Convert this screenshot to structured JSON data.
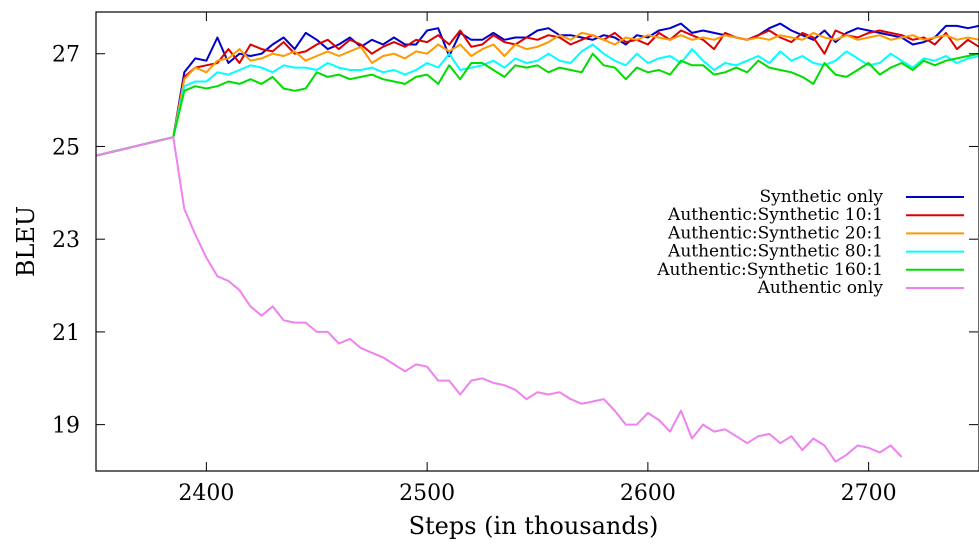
{
  "chart_data": {
    "type": "line",
    "title": "",
    "xlabel": "Steps (in thousands)",
    "ylabel": "BLEU",
    "xlim": [
      2350,
      2750
    ],
    "ylim": [
      18,
      27.9
    ],
    "xticks": [
      2400,
      2500,
      2600,
      2700
    ],
    "yticks": [
      19,
      21,
      23,
      25,
      27
    ],
    "grid": false,
    "legend_position": "right",
    "series": [
      {
        "name": "Synthetic only",
        "color": "#0000cc",
        "x": [
          2350,
          2385,
          2390,
          2395,
          2400,
          2405,
          2410,
          2415,
          2420,
          2425,
          2430,
          2435,
          2440,
          2445,
          2450,
          2455,
          2460,
          2465,
          2470,
          2475,
          2480,
          2485,
          2490,
          2495,
          2500,
          2505,
          2510,
          2515,
          2520,
          2525,
          2530,
          2535,
          2540,
          2545,
          2550,
          2555,
          2560,
          2565,
          2570,
          2575,
          2580,
          2585,
          2590,
          2595,
          2600,
          2605,
          2610,
          2615,
          2620,
          2625,
          2630,
          2635,
          2640,
          2645,
          2650,
          2655,
          2660,
          2665,
          2670,
          2675,
          2680,
          2685,
          2690,
          2695,
          2700,
          2705,
          2710,
          2715,
          2720,
          2725,
          2730,
          2735,
          2740,
          2745,
          2750
        ],
        "y": [
          24.8,
          25.2,
          26.6,
          26.9,
          26.85,
          27.35,
          26.8,
          27.0,
          26.95,
          27.0,
          27.2,
          27.35,
          27.1,
          27.45,
          27.3,
          27.1,
          27.2,
          27.35,
          27.15,
          27.3,
          27.2,
          27.35,
          27.2,
          27.2,
          27.5,
          27.55,
          26.95,
          27.45,
          27.3,
          27.3,
          27.45,
          27.3,
          27.35,
          27.35,
          27.5,
          27.55,
          27.4,
          27.4,
          27.35,
          27.3,
          27.4,
          27.35,
          27.2,
          27.4,
          27.35,
          27.5,
          27.55,
          27.65,
          27.45,
          27.5,
          27.45,
          27.4,
          27.35,
          27.3,
          27.4,
          27.55,
          27.65,
          27.5,
          27.4,
          27.3,
          27.5,
          27.25,
          27.45,
          27.55,
          27.5,
          27.45,
          27.4,
          27.35,
          27.2,
          27.25,
          27.35,
          27.6,
          27.6,
          27.55,
          27.6
        ]
      },
      {
        "name": "Authentic:Synthetic 10:1",
        "color": "#dd0000",
        "x": [
          2350,
          2385,
          2390,
          2395,
          2400,
          2405,
          2410,
          2415,
          2420,
          2425,
          2430,
          2435,
          2440,
          2445,
          2450,
          2455,
          2460,
          2465,
          2470,
          2475,
          2480,
          2485,
          2490,
          2495,
          2500,
          2505,
          2510,
          2515,
          2520,
          2525,
          2530,
          2535,
          2540,
          2545,
          2550,
          2555,
          2560,
          2565,
          2570,
          2575,
          2580,
          2585,
          2590,
          2595,
          2600,
          2605,
          2610,
          2615,
          2620,
          2625,
          2630,
          2635,
          2640,
          2645,
          2650,
          2655,
          2660,
          2665,
          2670,
          2675,
          2680,
          2685,
          2690,
          2695,
          2700,
          2705,
          2710,
          2715,
          2720,
          2725,
          2730,
          2735,
          2740,
          2745,
          2750
        ],
        "y": [
          24.8,
          25.2,
          26.5,
          26.7,
          26.75,
          26.8,
          27.1,
          26.8,
          27.2,
          27.1,
          27.05,
          27.25,
          27.0,
          27.05,
          27.2,
          27.3,
          27.1,
          27.3,
          27.2,
          27.0,
          27.15,
          27.25,
          27.15,
          27.3,
          27.25,
          27.4,
          27.2,
          27.5,
          27.15,
          27.2,
          27.4,
          27.25,
          27.2,
          27.35,
          27.3,
          27.4,
          27.35,
          27.2,
          27.3,
          27.4,
          27.3,
          27.45,
          27.25,
          27.3,
          27.2,
          27.45,
          27.3,
          27.5,
          27.4,
          27.3,
          27.1,
          27.45,
          27.35,
          27.3,
          27.4,
          27.5,
          27.35,
          27.25,
          27.45,
          27.35,
          27.0,
          27.5,
          27.4,
          27.35,
          27.45,
          27.5,
          27.45,
          27.4,
          27.3,
          27.35,
          27.2,
          27.45,
          27.1,
          27.3,
          27.15
        ]
      },
      {
        "name": "Authentic:Synthetic 20:1",
        "color": "#ff9900",
        "x": [
          2350,
          2385,
          2390,
          2395,
          2400,
          2405,
          2410,
          2415,
          2420,
          2425,
          2430,
          2435,
          2440,
          2445,
          2450,
          2455,
          2460,
          2465,
          2470,
          2475,
          2480,
          2485,
          2490,
          2495,
          2500,
          2505,
          2510,
          2515,
          2520,
          2525,
          2530,
          2535,
          2540,
          2545,
          2550,
          2555,
          2560,
          2565,
          2570,
          2575,
          2580,
          2585,
          2590,
          2595,
          2600,
          2605,
          2610,
          2615,
          2620,
          2625,
          2630,
          2635,
          2640,
          2645,
          2650,
          2655,
          2660,
          2665,
          2670,
          2675,
          2680,
          2685,
          2690,
          2695,
          2700,
          2705,
          2710,
          2715,
          2720,
          2725,
          2730,
          2735,
          2740,
          2745,
          2750
        ],
        "y": [
          24.8,
          25.2,
          26.45,
          26.7,
          26.6,
          26.85,
          26.9,
          27.1,
          26.85,
          26.9,
          27.0,
          26.95,
          27.05,
          26.85,
          26.95,
          27.05,
          26.95,
          27.05,
          27.15,
          26.8,
          26.95,
          27.0,
          26.9,
          27.05,
          27.0,
          27.2,
          27.05,
          27.2,
          26.95,
          27.1,
          27.2,
          26.95,
          27.2,
          27.1,
          27.15,
          27.25,
          27.4,
          27.3,
          27.45,
          27.4,
          27.3,
          27.2,
          27.35,
          27.3,
          27.4,
          27.35,
          27.3,
          27.4,
          27.3,
          27.35,
          27.3,
          27.4,
          27.35,
          27.3,
          27.35,
          27.3,
          27.4,
          27.35,
          27.3,
          27.45,
          27.35,
          27.3,
          27.4,
          27.3,
          27.35,
          27.4,
          27.3,
          27.35,
          27.4,
          27.3,
          27.35,
          27.4,
          27.3,
          27.35,
          27.3
        ]
      },
      {
        "name": "Authentic:Synthetic 80:1",
        "color": "#00ffff",
        "x": [
          2350,
          2385,
          2390,
          2395,
          2400,
          2405,
          2410,
          2415,
          2420,
          2425,
          2430,
          2435,
          2440,
          2445,
          2450,
          2455,
          2460,
          2465,
          2470,
          2475,
          2480,
          2485,
          2490,
          2495,
          2500,
          2505,
          2510,
          2515,
          2520,
          2525,
          2530,
          2535,
          2540,
          2545,
          2550,
          2555,
          2560,
          2565,
          2570,
          2575,
          2580,
          2585,
          2590,
          2595,
          2600,
          2605,
          2610,
          2615,
          2620,
          2625,
          2630,
          2635,
          2640,
          2645,
          2650,
          2655,
          2660,
          2665,
          2670,
          2675,
          2680,
          2685,
          2690,
          2695,
          2700,
          2705,
          2710,
          2715,
          2720,
          2725,
          2730,
          2735,
          2740,
          2745,
          2750
        ],
        "y": [
          24.8,
          25.2,
          26.3,
          26.4,
          26.4,
          26.6,
          26.55,
          26.65,
          26.75,
          26.7,
          26.6,
          26.75,
          26.7,
          26.7,
          26.65,
          26.8,
          26.7,
          26.65,
          26.65,
          26.7,
          26.6,
          26.65,
          26.55,
          26.65,
          26.8,
          26.7,
          27.0,
          26.65,
          26.7,
          26.75,
          26.85,
          26.7,
          26.9,
          26.8,
          26.85,
          27.0,
          26.85,
          26.8,
          27.05,
          27.2,
          27.0,
          26.85,
          26.75,
          27.0,
          26.8,
          26.9,
          26.95,
          26.8,
          27.1,
          26.85,
          26.65,
          26.8,
          26.75,
          26.85,
          26.95,
          26.8,
          27.05,
          26.85,
          26.95,
          26.8,
          26.75,
          26.85,
          27.05,
          26.9,
          26.75,
          26.8,
          27.0,
          26.85,
          26.7,
          26.9,
          26.85,
          26.95,
          26.8,
          26.9,
          26.95
        ]
      },
      {
        "name": "Authentic:Synthetic 160:1",
        "color": "#00dd00",
        "x": [
          2350,
          2385,
          2390,
          2395,
          2400,
          2405,
          2410,
          2415,
          2420,
          2425,
          2430,
          2435,
          2440,
          2445,
          2450,
          2455,
          2460,
          2465,
          2470,
          2475,
          2480,
          2485,
          2490,
          2495,
          2500,
          2505,
          2510,
          2515,
          2520,
          2525,
          2530,
          2535,
          2540,
          2545,
          2550,
          2555,
          2560,
          2565,
          2570,
          2575,
          2580,
          2585,
          2590,
          2595,
          2600,
          2605,
          2610,
          2615,
          2620,
          2625,
          2630,
          2635,
          2640,
          2645,
          2650,
          2655,
          2660,
          2665,
          2670,
          2675,
          2680,
          2685,
          2690,
          2695,
          2700,
          2705,
          2710,
          2715,
          2720,
          2725,
          2730,
          2735,
          2740,
          2745,
          2750
        ],
        "y": [
          24.8,
          25.2,
          26.2,
          26.3,
          26.25,
          26.3,
          26.4,
          26.35,
          26.45,
          26.35,
          26.5,
          26.25,
          26.2,
          26.25,
          26.6,
          26.5,
          26.55,
          26.45,
          26.5,
          26.55,
          26.45,
          26.4,
          26.35,
          26.5,
          26.55,
          26.35,
          26.75,
          26.45,
          26.8,
          26.8,
          26.65,
          26.5,
          26.75,
          26.7,
          26.75,
          26.6,
          26.7,
          26.65,
          26.6,
          27.0,
          26.75,
          26.7,
          26.45,
          26.7,
          26.6,
          26.65,
          26.55,
          26.85,
          26.75,
          26.75,
          26.55,
          26.6,
          26.7,
          26.6,
          26.85,
          26.7,
          26.65,
          26.6,
          26.5,
          26.35,
          26.8,
          26.55,
          26.5,
          26.65,
          26.8,
          26.55,
          26.7,
          26.8,
          26.65,
          26.85,
          26.75,
          26.85,
          26.9,
          26.95,
          27.0
        ]
      },
      {
        "name": "Authentic only",
        "color": "#ee82ee",
        "x": [
          2350,
          2385,
          2390,
          2395,
          2400,
          2405,
          2410,
          2415,
          2420,
          2425,
          2430,
          2435,
          2440,
          2445,
          2450,
          2455,
          2460,
          2465,
          2470,
          2475,
          2480,
          2485,
          2490,
          2495,
          2500,
          2505,
          2510,
          2515,
          2520,
          2525,
          2530,
          2535,
          2540,
          2545,
          2550,
          2555,
          2560,
          2565,
          2570,
          2575,
          2580,
          2585,
          2590,
          2595,
          2600,
          2605,
          2610,
          2615,
          2620,
          2625,
          2630,
          2635,
          2640,
          2645,
          2650,
          2655,
          2660,
          2665,
          2670,
          2675,
          2680,
          2685,
          2690,
          2695,
          2700,
          2705,
          2710,
          2715
        ],
        "y": [
          24.8,
          25.2,
          23.65,
          23.1,
          22.6,
          22.2,
          22.1,
          21.9,
          21.55,
          21.35,
          21.55,
          21.25,
          21.2,
          21.2,
          21.0,
          21.0,
          20.75,
          20.85,
          20.65,
          20.55,
          20.45,
          20.3,
          20.15,
          20.3,
          20.25,
          19.95,
          19.95,
          19.65,
          19.95,
          20.0,
          19.9,
          19.85,
          19.75,
          19.55,
          19.7,
          19.65,
          19.7,
          19.55,
          19.45,
          19.5,
          19.55,
          19.3,
          19.0,
          19.0,
          19.25,
          19.1,
          18.85,
          19.3,
          18.7,
          19.0,
          18.85,
          18.9,
          18.75,
          18.6,
          18.75,
          18.8,
          18.6,
          18.75,
          18.45,
          18.7,
          18.55,
          18.2,
          18.35,
          18.55,
          18.5,
          18.4,
          18.55,
          18.3
        ]
      }
    ]
  }
}
